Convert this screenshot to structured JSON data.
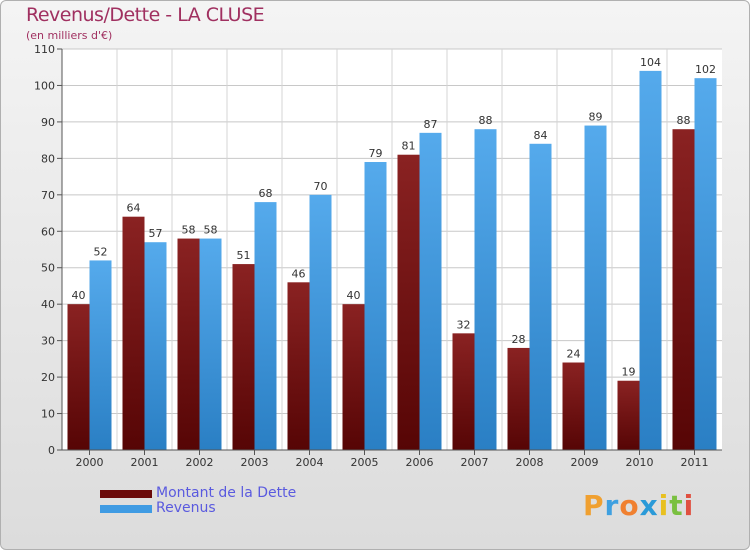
{
  "title": "Revenus/Dette - LA CLUSE",
  "subtitle": "(en milliers d'€)",
  "colors": {
    "dette": "#7a1414",
    "revenus": "#3f9be3",
    "title": "#a03060",
    "legend_text": "#5a5adf"
  },
  "legend": {
    "dette": "Montant de la Dette",
    "revenus": "Revenus"
  },
  "logo": {
    "text": "Proxiti",
    "letters": [
      {
        "ch": "P",
        "color": "#f0a030"
      },
      {
        "ch": "r",
        "color": "#3fa0e0"
      },
      {
        "ch": "o",
        "color": "#f08030"
      },
      {
        "ch": "x",
        "color": "#2a9ad8"
      },
      {
        "ch": "i",
        "color": "#e8c020"
      },
      {
        "ch": "t",
        "color": "#7ac040"
      },
      {
        "ch": "i",
        "color": "#e05040"
      }
    ]
  },
  "chart_data": {
    "type": "bar",
    "title": "Revenus/Dette - LA CLUSE",
    "subtitle": "(en milliers d'€)",
    "categories": [
      "2000",
      "2001",
      "2002",
      "2003",
      "2004",
      "2005",
      "2006",
      "2007",
      "2008",
      "2009",
      "2010",
      "2011"
    ],
    "series": [
      {
        "name": "Montant de la Dette",
        "values": [
          40,
          64,
          58,
          51,
          46,
          40,
          81,
          32,
          28,
          24,
          19,
          88
        ]
      },
      {
        "name": "Revenus",
        "values": [
          52,
          57,
          58,
          68,
          70,
          79,
          87,
          88,
          84,
          89,
          104,
          102
        ]
      }
    ],
    "ylim": [
      0,
      110
    ],
    "yticks": [
      0,
      10,
      20,
      30,
      40,
      50,
      60,
      70,
      80,
      90,
      100,
      110
    ],
    "grid": true,
    "legend_position": "bottom-left"
  }
}
